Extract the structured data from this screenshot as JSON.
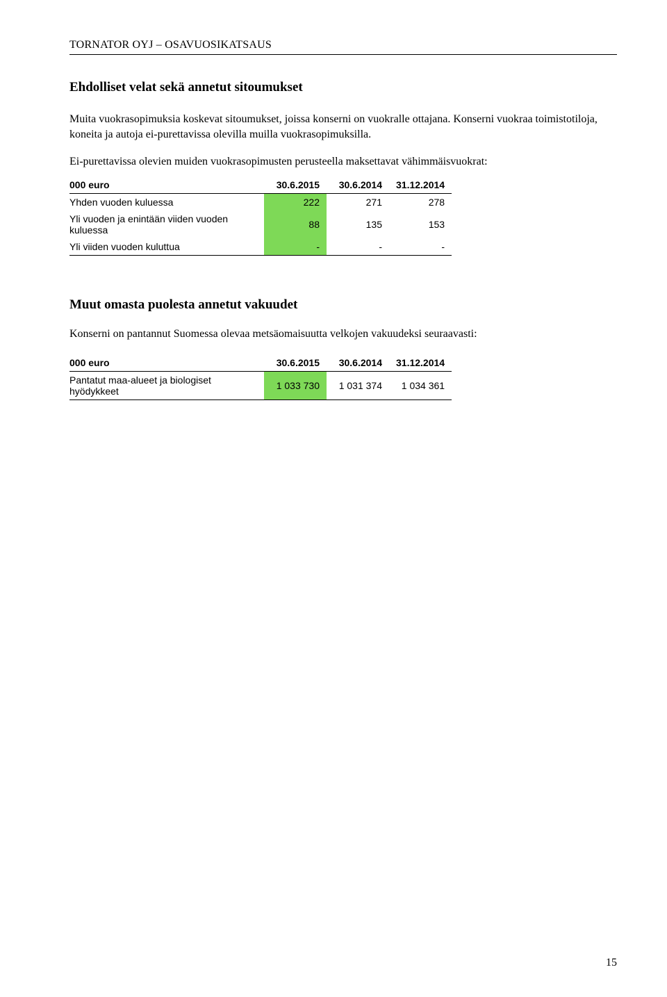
{
  "header": "TORNATOR OYJ – OSAVUOSIKATSAUS",
  "section1": {
    "title": "Ehdolliset velat sekä annetut sitoumukset",
    "para": "Muita vuokrasopimuksia koskevat sitoumukset, joissa konserni on vuokralle ottajana. Konserni vuokraa toimistotiloja, koneita ja autoja ei-purettavissa olevilla muilla vuokrasopimuksilla.",
    "subhead": "Ei-purettavissa olevien muiden vuokrasopimusten perusteella maksettavat vähimmäisvuokrat:"
  },
  "table1": {
    "unit_label": "000 euro",
    "columns": [
      "30.6.2015",
      "30.6.2014",
      "31.12.2014"
    ],
    "highlight_color": "#7ed957",
    "rows": [
      {
        "label": "Yhden vuoden kuluessa",
        "values": [
          "222",
          "271",
          "278"
        ]
      },
      {
        "label": "Yli vuoden ja enintään viiden vuoden kuluessa",
        "values": [
          "88",
          "135",
          "153"
        ]
      },
      {
        "label": "Yli viiden vuoden kuluttua",
        "values": [
          "-",
          "-",
          "-"
        ]
      }
    ]
  },
  "section2": {
    "title": "Muut omasta puolesta annetut vakuudet",
    "para": "Konserni on pantannut Suomessa olevaa metsäomaisuutta velkojen vakuudeksi seuraavasti:"
  },
  "table2": {
    "unit_label": "000 euro",
    "columns": [
      "30.6.2015",
      "30.6.2014",
      "31.12.2014"
    ],
    "highlight_color": "#7ed957",
    "rows": [
      {
        "label": "Pantatut maa-alueet ja biologiset hyödykkeet",
        "values": [
          "1 033 730",
          "1 031 374",
          "1 034 361"
        ]
      }
    ]
  },
  "page_number": "15",
  "style": {
    "body_font": "Times New Roman",
    "table_font": "Arial",
    "text_color": "#000000",
    "bg_color": "#ffffff",
    "highlight_bg": "#7ed957"
  }
}
